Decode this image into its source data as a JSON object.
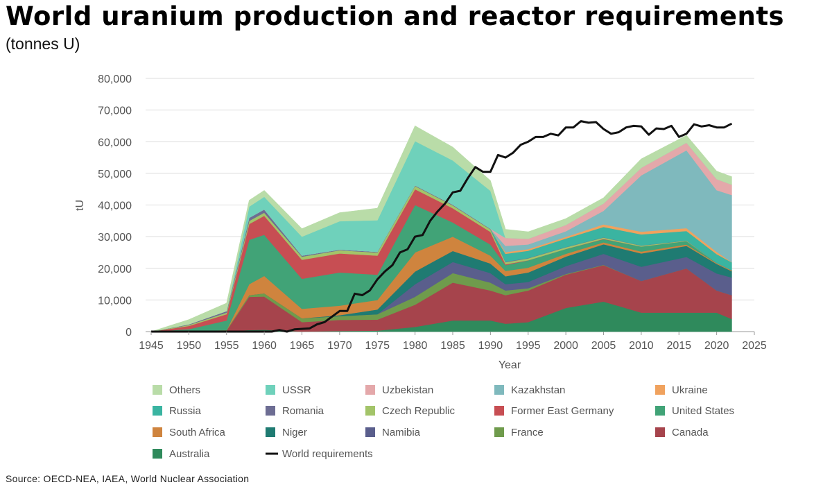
{
  "header": {
    "title": "World uranium production and reactor requirements",
    "subtitle": "(tonnes U)"
  },
  "footer": {
    "source": "Source:  OECD-NEA, IAEA, World Nuclear Association"
  },
  "chart_data": {
    "type": "area",
    "stacked": true,
    "xlabel": "Year",
    "ylabel": "tU",
    "xlim": [
      1945,
      2025
    ],
    "ylim": [
      0,
      80000
    ],
    "x_ticks": [
      "1945",
      "1950",
      "1955",
      "1960",
      "1965",
      "1970",
      "1975",
      "1980",
      "1985",
      "1990",
      "1995",
      "2000",
      "2005",
      "2010",
      "2015",
      "2020",
      "2025"
    ],
    "y_ticks": [
      "0",
      "10,000",
      "20,000",
      "30,000",
      "40,000",
      "50,000",
      "60,000",
      "70,000",
      "80,000"
    ],
    "grid": true,
    "legend_position": "bottom",
    "legend_order": [
      "Others",
      "USSR",
      "Uzbekistan",
      "Kazakhstan",
      "Ukraine",
      "Russia",
      "Romania",
      "Czech Republic",
      "Former East Germany",
      "United States",
      "South Africa",
      "Niger",
      "Namibia",
      "France",
      "Canada",
      "Australia",
      "World requirements"
    ],
    "keys": [
      1945,
      1950,
      1955,
      1958,
      1960,
      1965,
      1970,
      1975,
      1980,
      1985,
      1990,
      1992,
      1995,
      2000,
      2005,
      2010,
      2016,
      2020,
      2022
    ],
    "series": [
      {
        "name": "Australia",
        "color": "#2f8a5c",
        "values": [
          0,
          0,
          100,
          500,
          600,
          0,
          200,
          300,
          1500,
          3500,
          3500,
          2500,
          3000,
          7500,
          9500,
          6000,
          6000,
          6000,
          4000
        ]
      },
      {
        "name": "Canada",
        "color": "#a6444c",
        "values": [
          0,
          100,
          200,
          10500,
          10500,
          3000,
          3500,
          3500,
          7000,
          12000,
          9500,
          9000,
          10000,
          10500,
          11500,
          10000,
          14000,
          7000,
          7500
        ]
      },
      {
        "name": "France",
        "color": "#6f9b4c",
        "values": [
          0,
          0,
          200,
          500,
          1000,
          1200,
          1200,
          1700,
          2500,
          3000,
          2500,
          1500,
          700,
          200,
          100,
          0,
          0,
          0,
          0
        ]
      },
      {
        "name": "Namibia",
        "color": "#5a5e8c",
        "values": [
          0,
          0,
          0,
          0,
          0,
          0,
          0,
          0,
          4000,
          3500,
          3000,
          2000,
          2000,
          2500,
          3500,
          4500,
          3600,
          5400,
          5600
        ]
      },
      {
        "name": "Niger",
        "color": "#1f7b72",
        "values": [
          0,
          0,
          0,
          0,
          0,
          0,
          300,
          1500,
          4000,
          3500,
          3000,
          2500,
          3000,
          3000,
          3000,
          4200,
          3500,
          3000,
          2000
        ]
      },
      {
        "name": "South Africa",
        "color": "#cf843e",
        "values": [
          0,
          0,
          0,
          3500,
          5500,
          3000,
          3000,
          3000,
          6000,
          4500,
          2500,
          1700,
          1500,
          900,
          600,
          600,
          400,
          250,
          200
        ]
      },
      {
        "name": "United States",
        "color": "#41a377",
        "values": [
          0,
          700,
          3000,
          14000,
          13000,
          9500,
          10500,
          8000,
          15000,
          4500,
          3500,
          1800,
          2300,
          1500,
          1000,
          1600,
          1100,
          50,
          100
        ]
      },
      {
        "name": "Former East Germany",
        "color": "#c74e53",
        "values": [
          0,
          1000,
          2000,
          5000,
          6000,
          6000,
          6000,
          6000,
          5000,
          4500,
          4000,
          250,
          50,
          30,
          100,
          0,
          0,
          0,
          0
        ]
      },
      {
        "name": "Czech Republic",
        "color": "#a3c469",
        "values": [
          0,
          300,
          500,
          1000,
          1000,
          1000,
          1000,
          1000,
          1000,
          900,
          800,
          700,
          600,
          500,
          400,
          250,
          150,
          0,
          0
        ]
      },
      {
        "name": "Romania",
        "color": "#6d6d93",
        "values": [
          0,
          200,
          500,
          1000,
          1000,
          300,
          200,
          200,
          200,
          200,
          200,
          150,
          100,
          80,
          80,
          80,
          50,
          0,
          0
        ]
      },
      {
        "name": "Russia",
        "color": "#3ab4a1",
        "values": [
          0,
          0,
          0,
          0,
          0,
          0,
          0,
          0,
          0,
          0,
          0,
          2500,
          2300,
          2700,
          3300,
          3500,
          3000,
          2800,
          2500
        ]
      },
      {
        "name": "Ukraine",
        "color": "#f0a25e",
        "values": [
          0,
          0,
          0,
          0,
          0,
          0,
          0,
          0,
          0,
          0,
          0,
          500,
          500,
          500,
          800,
          850,
          900,
          700,
          50
        ]
      },
      {
        "name": "Kazakhstan",
        "color": "#7fb9bd",
        "values": [
          0,
          0,
          0,
          0,
          0,
          0,
          0,
          0,
          0,
          0,
          0,
          2000,
          1500,
          1800,
          4300,
          17800,
          24600,
          19500,
          21200
        ]
      },
      {
        "name": "Uzbekistan",
        "color": "#e4a8aa",
        "values": [
          0,
          0,
          0,
          0,
          0,
          0,
          0,
          0,
          0,
          0,
          0,
          2500,
          1800,
          2000,
          2300,
          2400,
          2400,
          3500,
          3300
        ]
      },
      {
        "name": "USSR",
        "color": "#6fd1bb",
        "values": [
          0,
          0,
          0,
          3500,
          4000,
          6000,
          9000,
          10000,
          14000,
          14000,
          12000,
          0,
          0,
          0,
          0,
          0,
          0,
          0,
          0
        ]
      },
      {
        "name": "Others",
        "color": "#b9dca8",
        "values": [
          0,
          1500,
          2500,
          2000,
          2000,
          2500,
          2700,
          3800,
          4800,
          4200,
          3200,
          2700,
          2200,
          2000,
          1800,
          2800,
          2300,
          2500,
          2500
        ]
      }
    ],
    "requirements": {
      "name": "World requirements",
      "color": "#111111",
      "points": [
        [
          1945,
          0
        ],
        [
          1955,
          0
        ],
        [
          1961,
          0
        ],
        [
          1962,
          500
        ],
        [
          1963,
          0
        ],
        [
          1964,
          700
        ],
        [
          1966,
          1000
        ],
        [
          1967,
          2300
        ],
        [
          1968,
          3000
        ],
        [
          1970,
          6500
        ],
        [
          1971,
          6500
        ],
        [
          1972,
          12000
        ],
        [
          1973,
          11500
        ],
        [
          1974,
          13000
        ],
        [
          1975,
          16500
        ],
        [
          1976,
          19000
        ],
        [
          1977,
          21000
        ],
        [
          1978,
          25000
        ],
        [
          1979,
          26000
        ],
        [
          1980,
          30000
        ],
        [
          1981,
          30500
        ],
        [
          1982,
          35000
        ],
        [
          1983,
          38000
        ],
        [
          1984,
          40500
        ],
        [
          1985,
          44000
        ],
        [
          1986,
          44500
        ],
        [
          1987,
          48500
        ],
        [
          1988,
          52000
        ],
        [
          1989,
          50500
        ],
        [
          1990,
          50500
        ],
        [
          1991,
          55800
        ],
        [
          1992,
          55000
        ],
        [
          1993,
          56500
        ],
        [
          1994,
          59000
        ],
        [
          1995,
          60000
        ],
        [
          1996,
          61500
        ],
        [
          1997,
          61500
        ],
        [
          1998,
          62500
        ],
        [
          1999,
          62000
        ],
        [
          2000,
          64500
        ],
        [
          2001,
          64500
        ],
        [
          2002,
          66500
        ],
        [
          2003,
          66000
        ],
        [
          2004,
          66200
        ],
        [
          2005,
          64000
        ],
        [
          2006,
          62500
        ],
        [
          2007,
          63000
        ],
        [
          2008,
          64500
        ],
        [
          2009,
          65000
        ],
        [
          2010,
          64800
        ],
        [
          2011,
          62200
        ],
        [
          2012,
          64200
        ],
        [
          2013,
          64000
        ],
        [
          2014,
          65000
        ],
        [
          2015,
          61500
        ],
        [
          2016,
          62500
        ],
        [
          2017,
          65500
        ],
        [
          2018,
          64800
        ],
        [
          2019,
          65200
        ],
        [
          2020,
          64500
        ],
        [
          2021,
          64500
        ],
        [
          2022,
          65700
        ]
      ]
    }
  }
}
